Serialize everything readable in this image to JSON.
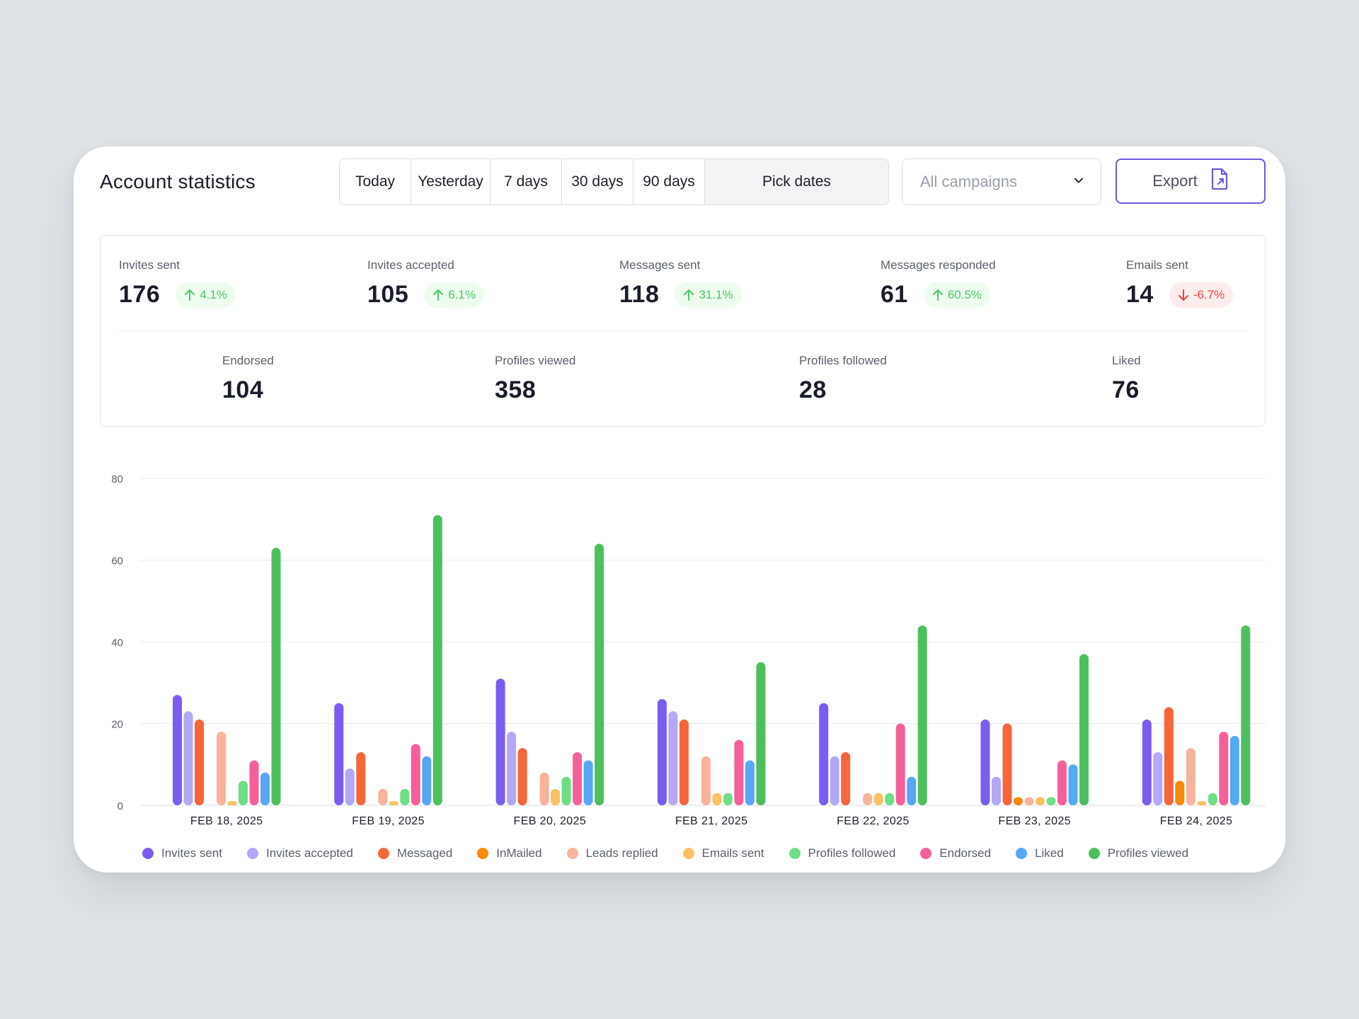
{
  "header": {
    "title": "Account statistics",
    "ranges": [
      "Today",
      "Yesterday",
      "7 days",
      "30 days",
      "90 days",
      "Pick dates"
    ],
    "active_range": "Pick dates",
    "campaign_select": {
      "placeholder": "All campaigns",
      "icon": "chevron-down-icon"
    },
    "export": {
      "label": "Export",
      "icon": "file-export-icon"
    },
    "accent_color": "#6a5ae0"
  },
  "stats_top": [
    {
      "label": "Invites sent",
      "value": "176",
      "change": "4.1%",
      "direction": "up"
    },
    {
      "label": "Invites accepted",
      "value": "105",
      "change": "6.1%",
      "direction": "up"
    },
    {
      "label": "Messages sent",
      "value": "118",
      "change": "31.1%",
      "direction": "up"
    },
    {
      "label": "Messages responded",
      "value": "61",
      "change": "60.5%",
      "direction": "up"
    },
    {
      "label": "Emails sent",
      "value": "14",
      "change": "-6.7%",
      "direction": "down"
    }
  ],
  "stats_bottom": [
    {
      "label": "Endorsed",
      "value": "104"
    },
    {
      "label": "Profiles viewed",
      "value": "358"
    },
    {
      "label": "Profiles followed",
      "value": "28"
    },
    {
      "label": "Liked",
      "value": "76"
    }
  ],
  "chart_data": {
    "type": "bar",
    "categories": [
      "FEB 18, 2025",
      "FEB 19, 2025",
      "FEB 20, 2025",
      "FEB 21, 2025",
      "FEB 22, 2025",
      "FEB 23, 2025",
      "FEB 24, 2025"
    ],
    "ylim": [
      0,
      80
    ],
    "yticks": [
      0,
      20,
      40,
      60,
      80
    ],
    "grid": true,
    "legend_position": "bottom",
    "series": [
      {
        "name": "Invites sent",
        "color": "#7b5cf0",
        "values": [
          27,
          25,
          31,
          26,
          25,
          21,
          21
        ]
      },
      {
        "name": "Invites accepted",
        "color": "#b3a8f5",
        "values": [
          23,
          9,
          18,
          23,
          12,
          7,
          13
        ]
      },
      {
        "name": "Messaged",
        "color": "#f5663a",
        "values": [
          21,
          13,
          14,
          21,
          13,
          20,
          24
        ]
      },
      {
        "name": "InMailed",
        "color": "#f98a0c",
        "values": [
          0,
          0,
          0,
          0,
          0,
          2,
          6
        ]
      },
      {
        "name": "Leads replied",
        "color": "#f7b39b",
        "values": [
          18,
          4,
          8,
          12,
          3,
          2,
          14
        ]
      },
      {
        "name": "Emails sent",
        "color": "#fbc163",
        "values": [
          1,
          1,
          4,
          3,
          3,
          2,
          1
        ]
      },
      {
        "name": "Profiles followed",
        "color": "#6fde86",
        "values": [
          6,
          4,
          7,
          3,
          3,
          2,
          3
        ]
      },
      {
        "name": "Endorsed",
        "color": "#f5609a",
        "values": [
          11,
          15,
          13,
          16,
          20,
          11,
          18
        ]
      },
      {
        "name": "Liked",
        "color": "#55a8f2",
        "values": [
          8,
          12,
          11,
          11,
          7,
          10,
          17
        ]
      },
      {
        "name": "Profiles viewed",
        "color": "#4fbf5e",
        "values": [
          63,
          71,
          64,
          35,
          44,
          37,
          44
        ]
      }
    ]
  }
}
